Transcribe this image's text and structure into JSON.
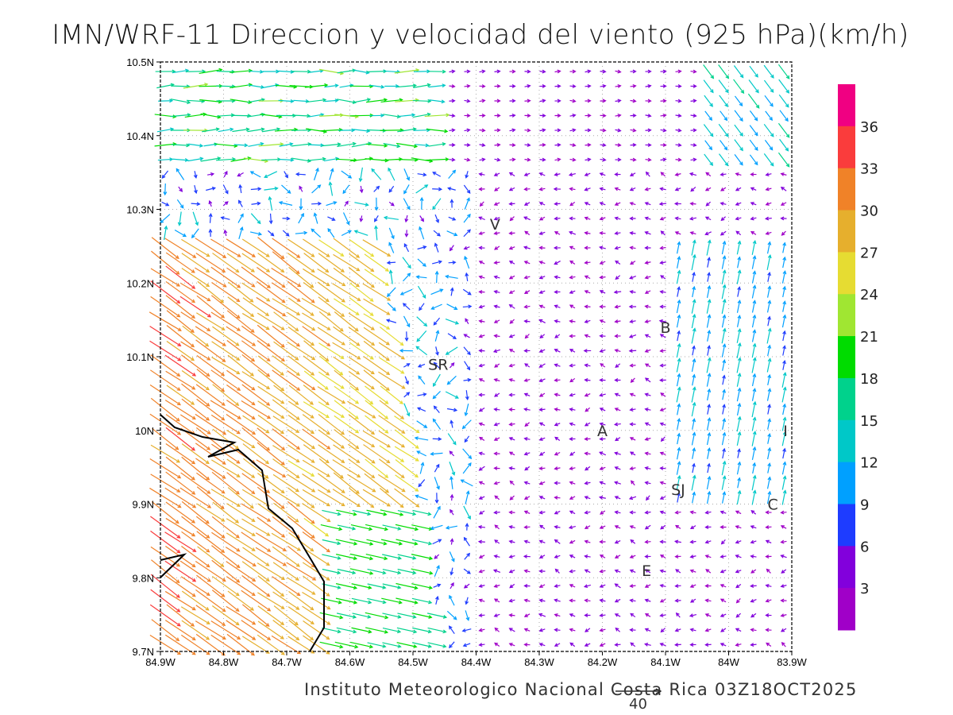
{
  "title": "IMN/WRF-11 Direccion y velocidad del viento (925 hPa)(km/h)",
  "footer": "Instituto Meteorologico Nacional Costa Rica  03Z18OCT2025",
  "reference_vector": {
    "label": "40",
    "value_kmh": 40
  },
  "axes": {
    "x_ticks": [
      "84.9W",
      "84.8W",
      "84.7W",
      "84.6W",
      "84.5W",
      "84.4W",
      "84.3W",
      "84.2W",
      "84.1W",
      "84W",
      "83.9W"
    ],
    "y_ticks": [
      "10.5N",
      "10.4N",
      "10.3N",
      "10.2N",
      "10.1N",
      "10N",
      "9.9N",
      "9.8N",
      "9.7N"
    ],
    "lon_range": [
      -84.9,
      -83.9
    ],
    "lat_range": [
      9.7,
      10.5
    ]
  },
  "cities": [
    {
      "label": "V",
      "lon": -84.37,
      "lat": 10.28
    },
    {
      "label": "B",
      "lon": -84.1,
      "lat": 10.14
    },
    {
      "label": "SR",
      "lon": -84.46,
      "lat": 10.09
    },
    {
      "label": "A",
      "lon": -84.2,
      "lat": 10.0
    },
    {
      "label": "I",
      "lon": -83.91,
      "lat": 10.0
    },
    {
      "label": "SJ",
      "lon": -84.08,
      "lat": 9.92
    },
    {
      "label": "C",
      "lon": -83.93,
      "lat": 9.9
    },
    {
      "label": "E",
      "lon": -84.13,
      "lat": 9.81
    }
  ],
  "colorbar": {
    "labels": [
      "3",
      "6",
      "9",
      "12",
      "15",
      "18",
      "21",
      "24",
      "27",
      "30",
      "33",
      "36"
    ],
    "colors": [
      "#a000c8",
      "#8200dc",
      "#1e3cff",
      "#00a0ff",
      "#00c8c8",
      "#00d28c",
      "#00dc00",
      "#a0e632",
      "#e6dc32",
      "#e6af2d",
      "#f08228",
      "#fa3c3c",
      "#f00082"
    ]
  }
}
